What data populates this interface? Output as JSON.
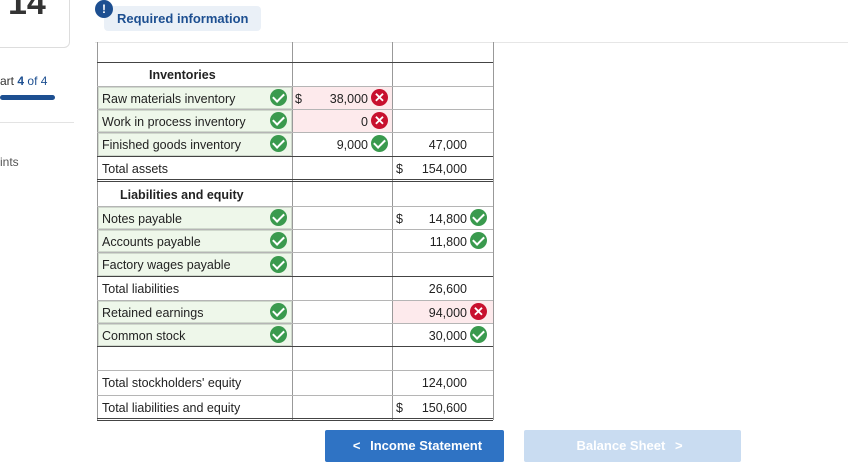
{
  "sidebar": {
    "question_number": "14",
    "part_prefix": "art",
    "part_current": "4",
    "part_of": "of 4",
    "points_label": "ints"
  },
  "header": {
    "badge": "!",
    "required_info": "Required information"
  },
  "rows": {
    "inventories_header": "Inventories",
    "raw_materials": {
      "label": "Raw materials inventory",
      "dollar": "$",
      "amount": "38,000"
    },
    "wip": {
      "label": "Work in process inventory",
      "amount": "0"
    },
    "finished_goods": {
      "label": "Finished goods inventory",
      "amount": "9,000",
      "total": "47,000"
    },
    "total_assets": {
      "label": "Total assets",
      "dollar": "$",
      "total": "154,000"
    },
    "liab_header": "Liabilities and equity",
    "notes_payable": {
      "label": "Notes payable",
      "dollar": "$",
      "total": "14,800"
    },
    "accounts_payable": {
      "label": "Accounts payable",
      "total": "11,800"
    },
    "factory_wages": {
      "label": "Factory wages payable"
    },
    "total_liabilities": {
      "label": "Total liabilities",
      "total": "26,600"
    },
    "retained_earnings": {
      "label": "Retained earnings",
      "total": "94,000"
    },
    "common_stock": {
      "label": "Common stock",
      "total": "30,000"
    },
    "total_se": {
      "label": "Total stockholders' equity",
      "total": "124,000"
    },
    "total_le": {
      "label": "Total liabilities and equity",
      "dollar": "$",
      "total": "150,600"
    }
  },
  "nav": {
    "prev_label": "Income Statement",
    "next_label": "Balance Sheet",
    "prev_chevron": "<",
    "next_chevron": ">"
  },
  "colors": {
    "correct": "#3a9a4e",
    "incorrect": "#c8102e",
    "primary": "#2f73c4"
  }
}
